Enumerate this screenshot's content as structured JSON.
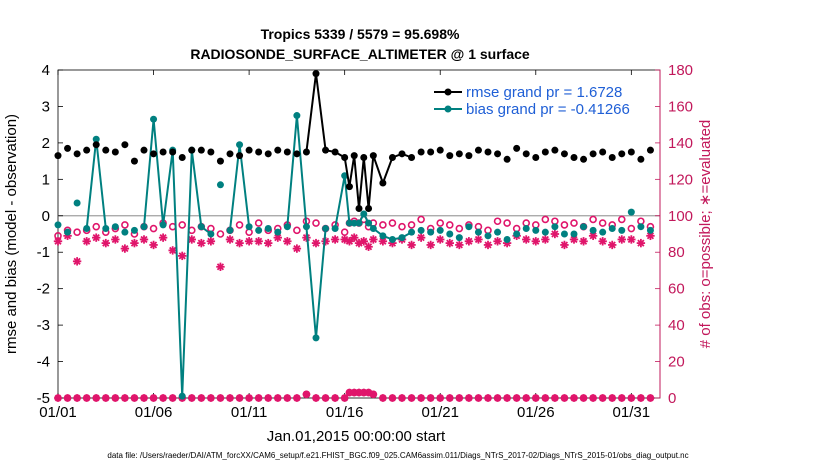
{
  "chart_data": {
    "type": "line",
    "title": "Tropics 5339 / 5579 = 95.698%",
    "subtitle": "RADIOSONDE_SURFACE_ALTIMETER @ 1 surface",
    "xlabel": "Jan.01,2015 00:00:00 start",
    "ylabel": "rmse and bias (model - observation)",
    "ylabel_right": "# of obs: o=possible; ∗=evaluated",
    "footnote": "data file: /Users/raeder/DAI/ATM_forcXX/CAM6_setup/f.e21.FHIST_BGC.f09_025.CAM6assim.011/Diags_NTrS_2017-02/Diags_NTrS_2015-01/obs_diag_output.nc",
    "xlim": [
      0,
      31.5
    ],
    "ylim": [
      -5,
      4
    ],
    "ylim_right": [
      0,
      180
    ],
    "x_ticks": [
      0,
      5,
      10,
      15,
      20,
      25,
      30
    ],
    "x_tick_labels": [
      "01/01",
      "01/06",
      "01/11",
      "01/16",
      "01/21",
      "01/26",
      "01/31"
    ],
    "y_ticks": [
      -5,
      -4,
      -3,
      -2,
      -1,
      0,
      1,
      2,
      3,
      4
    ],
    "y_tick_labels": [
      "-5",
      "-4",
      "-3",
      "-2",
      "-1",
      "0",
      "1",
      "2",
      "3",
      "4"
    ],
    "y_ticks_right": [
      0,
      20,
      40,
      60,
      80,
      100,
      120,
      140,
      160,
      180
    ],
    "y_tick_labels_right": [
      "0",
      "20",
      "40",
      "60",
      "80",
      "100",
      "120",
      "140",
      "160",
      "180"
    ],
    "zero_line": 0,
    "colors": {
      "rmse": "#000000",
      "bias": "#008080",
      "counts": "#e0156b",
      "legend_text": "#1f5fd6",
      "right_axis": "#c2185b"
    },
    "series": [
      {
        "name": "rmse grand pr = 1.6728",
        "axis": "left",
        "x": [
          0,
          0.5,
          1,
          1.5,
          2,
          2.5,
          3,
          3.5,
          4,
          4.5,
          5,
          5.5,
          6,
          6.5,
          7,
          7.5,
          8,
          8.5,
          9,
          9.5,
          10,
          10.5,
          11,
          11.5,
          12,
          12.5,
          13,
          13.5,
          14,
          14.5,
          15,
          15.25,
          15.5,
          15.75,
          16,
          16.25,
          16.5,
          17,
          17.5,
          18,
          18.5,
          19,
          19.5,
          20,
          20.5,
          21,
          21.5,
          22,
          22.5,
          23,
          23.5,
          24,
          24.5,
          25,
          25.5,
          26,
          26.5,
          27,
          27.5,
          28,
          28.5,
          29,
          29.5,
          30,
          30.5,
          31
        ],
        "values": [
          1.65,
          1.85,
          1.7,
          1.8,
          1.95,
          1.8,
          1.75,
          1.95,
          1.5,
          1.8,
          1.7,
          1.75,
          1.75,
          1.6,
          1.8,
          1.8,
          1.75,
          1.5,
          1.7,
          1.65,
          1.8,
          1.75,
          1.7,
          1.8,
          1.75,
          1.7,
          1.75,
          1.55,
          1.8,
          1.7,
          1.65,
          1.6,
          1.6,
          1.65,
          1.55,
          1.6,
          1.6,
          1.6,
          1.6,
          1.7,
          1.6,
          1.75,
          1.75,
          1.8,
          1.65,
          1.7,
          1.65,
          1.8,
          1.75,
          1.7,
          1.55,
          1.85,
          1.7,
          1.6,
          1.75,
          1.8,
          1.7,
          1.6,
          1.55,
          1.7,
          1.75,
          1.6,
          1.7,
          1.75,
          1.55,
          1.8
        ],
        "breaks": [],
        "line_segments": [
          [
            26,
            27,
            28,
            29,
            30,
            31,
            32,
            33,
            34,
            35,
            36,
            37,
            38,
            39,
            40
          ]
        ],
        "line_values_override": {
          "27": 3.9,
          "29": 1.75,
          "30": 1.6,
          "31": 0.8,
          "32": 1.65,
          "33": 0.2,
          "34": 1.6,
          "35": 0.2,
          "36": 1.65,
          "37": 0.9,
          "38": 1.6
        }
      },
      {
        "name": "bias grand pr = -0.41266",
        "axis": "left",
        "x": [
          0,
          0.5,
          1,
          1.5,
          2,
          2.5,
          3,
          3.5,
          4,
          4.5,
          5,
          5.5,
          6,
          6.5,
          7,
          7.5,
          8,
          8.5,
          9,
          9.5,
          10,
          10.5,
          11,
          11.5,
          12,
          12.5,
          13,
          13.5,
          14,
          14.5,
          15,
          15.25,
          15.5,
          15.75,
          16,
          16.25,
          16.5,
          17,
          17.5,
          18,
          18.5,
          19,
          19.5,
          20,
          20.5,
          21,
          21.5,
          22,
          22.5,
          23,
          23.5,
          24,
          24.5,
          25,
          25.5,
          26,
          26.5,
          27,
          27.5,
          28,
          28.5,
          29,
          29.5,
          30,
          30.5,
          31
        ],
        "values": [
          -0.25,
          -0.45,
          0.35,
          -0.35,
          2.1,
          -0.35,
          -0.3,
          -0.45,
          -0.4,
          -0.3,
          2.65,
          -0.25,
          1.8,
          -4.95,
          1.8,
          -0.3,
          -0.5,
          0.85,
          -0.4,
          1.95,
          -0.3,
          -0.4,
          -0.35,
          -0.45,
          -0.3,
          2.75,
          -0.3,
          -3.35,
          -0.35,
          -0.35,
          1.1,
          -0.2,
          -0.2,
          -0.2,
          0.05,
          -0.2,
          -0.35,
          -0.55,
          -0.65,
          -0.6,
          -0.45,
          -0.4,
          -0.45,
          -0.4,
          -0.5,
          -0.6,
          -0.3,
          -0.45,
          -0.55,
          -0.45,
          -0.65,
          -0.5,
          -0.35,
          -0.4,
          -0.45,
          -0.3,
          -0.5,
          -0.5,
          -0.3,
          -0.4,
          -0.45,
          -0.35,
          -0.4,
          0.1,
          -0.3,
          -0.4
        ]
      },
      {
        "name": "possible",
        "axis": "right",
        "marker": "o",
        "x": [
          0,
          0.5,
          1,
          1.5,
          2,
          2.5,
          3,
          3.5,
          4,
          4.5,
          5,
          5.5,
          6,
          6.5,
          7,
          7.5,
          8,
          8.5,
          9,
          9.5,
          10,
          10.5,
          11,
          11.5,
          12,
          12.5,
          13,
          13.5,
          14,
          14.5,
          15,
          15.25,
          15.5,
          15.75,
          16,
          16.25,
          16.5,
          17,
          17.5,
          18,
          18.5,
          19,
          19.5,
          20,
          20.5,
          21,
          21.5,
          22,
          22.5,
          23,
          23.5,
          24,
          24.5,
          25,
          25.5,
          26,
          26.5,
          27,
          27.5,
          28,
          28.5,
          29,
          29.5,
          30,
          30.5,
          31
        ],
        "values": [
          89,
          92,
          91,
          92,
          94,
          91,
          93,
          95,
          90,
          94,
          93,
          96,
          94,
          95,
          92,
          94,
          93,
          90,
          92,
          95,
          91,
          96,
          92,
          93,
          95,
          92,
          97,
          96,
          93,
          95,
          91,
          96,
          97,
          96,
          98,
          94,
          96,
          95,
          96,
          94,
          95,
          98,
          93,
          96,
          95,
          93,
          95,
          94,
          92,
          97,
          96,
          93,
          96,
          95,
          98,
          97,
          95,
          96,
          94,
          98,
          96,
          95,
          98,
          93,
          97,
          94
        ]
      },
      {
        "name": "evaluated",
        "axis": "right",
        "marker": "*",
        "x": [
          0,
          0.5,
          1,
          1.5,
          2,
          2.5,
          3,
          3.5,
          4,
          4.5,
          5,
          5.5,
          6,
          6.5,
          7,
          7.5,
          8,
          8.5,
          9,
          9.5,
          10,
          10.5,
          11,
          11.5,
          12,
          12.5,
          13,
          13.5,
          14,
          14.5,
          15,
          15.25,
          15.5,
          15.75,
          16,
          16.25,
          16.5,
          17,
          17.5,
          18,
          18.5,
          19,
          19.5,
          20,
          20.5,
          21,
          21.5,
          22,
          22.5,
          23,
          23.5,
          24,
          24.5,
          25,
          25.5,
          26,
          26.5,
          27,
          27.5,
          28,
          28.5,
          29,
          29.5,
          30,
          30.5,
          31
        ],
        "values": [
          86,
          89,
          75,
          86,
          88,
          85,
          87,
          82,
          85,
          87,
          84,
          88,
          81,
          78,
          87,
          85,
          86,
          72,
          87,
          85,
          86,
          86,
          85,
          88,
          86,
          82,
          88,
          85,
          86,
          87,
          87,
          86,
          88,
          85,
          86,
          83,
          87,
          86,
          85,
          87,
          84,
          88,
          84,
          87,
          85,
          84,
          86,
          87,
          84,
          86,
          85,
          89,
          87,
          86,
          87,
          90,
          84,
          87,
          86,
          89,
          86,
          84,
          87,
          87,
          85,
          89
        ]
      },
      {
        "name": "possible-bottom",
        "axis": "right",
        "marker": "o",
        "x": [
          0,
          0.5,
          1,
          1.5,
          2,
          2.5,
          3,
          3.5,
          4,
          4.5,
          5,
          5.5,
          6,
          6.5,
          7,
          7.5,
          8,
          8.5,
          9,
          9.5,
          10,
          10.5,
          11,
          11.5,
          12,
          12.5,
          13,
          13.5,
          14,
          14.5,
          15,
          15.25,
          15.5,
          15.75,
          16,
          16.25,
          16.5,
          17,
          17.5,
          18,
          18.5,
          19,
          19.5,
          20,
          20.5,
          21,
          21.5,
          22,
          22.5,
          23,
          23.5,
          24,
          24.5,
          25,
          25.5,
          26,
          26.5,
          27,
          27.5,
          28,
          28.5,
          29,
          29.5,
          30,
          30.5,
          31
        ],
        "values": [
          0,
          0,
          0,
          0,
          0,
          0,
          0,
          0,
          0,
          0,
          0,
          0,
          0,
          0,
          0,
          0,
          0,
          0,
          0,
          0,
          0,
          0,
          0,
          0,
          0,
          0,
          2,
          0,
          0,
          0,
          0,
          3,
          3,
          3,
          3,
          3,
          2,
          0,
          0,
          0,
          0,
          0,
          0,
          0,
          0,
          0,
          0,
          0,
          0,
          0,
          0,
          0,
          0,
          0,
          0,
          0,
          0,
          0,
          0,
          0,
          0,
          0,
          0,
          0,
          0,
          0
        ]
      }
    ]
  }
}
